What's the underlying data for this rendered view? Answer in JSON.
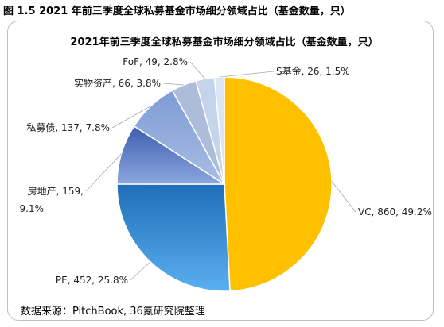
{
  "caption": "图 1.5 2021 年前三季度全球私募基金市场细分领域占比（基金数量，只）",
  "source": "数据来源：PitchBook, 36氪研究院整理",
  "chart_data": {
    "type": "pie",
    "title": "2021年前三季度全球私募基金市场细分领域占比（基金数量，只）",
    "unit": "只",
    "slices": [
      {
        "name": "VC",
        "value": 860,
        "percent": "49.2%",
        "label": "VC, 860, 49.2%",
        "color": "#FFC000"
      },
      {
        "name": "PE",
        "value": 452,
        "percent": "25.8%",
        "label": "PE, 452, 25.8%",
        "color": "#2E86D4"
      },
      {
        "name": "房地产",
        "value": 159,
        "percent": "9.1%",
        "label_lines": [
          "房地产, 159,",
          "9.1%"
        ],
        "color": "#5B7FC8"
      },
      {
        "name": "私募债",
        "value": 137,
        "percent": "7.8%",
        "label": "私募债, 137, 7.8%",
        "color": "#8FAADC"
      },
      {
        "name": "实物资产",
        "value": 66,
        "percent": "3.8%",
        "label": "实物资产, 66, 3.8%",
        "color": "#ADBCD9"
      },
      {
        "name": "FoF",
        "value": 49,
        "percent": "2.8%",
        "label": "FoF, 49, 2.8%",
        "color": "#C5D3EB"
      },
      {
        "name": "S基金",
        "value": 26,
        "percent": "1.5%",
        "label": "S基金, 26, 1.5%",
        "color": "#DCE5F4"
      }
    ]
  }
}
